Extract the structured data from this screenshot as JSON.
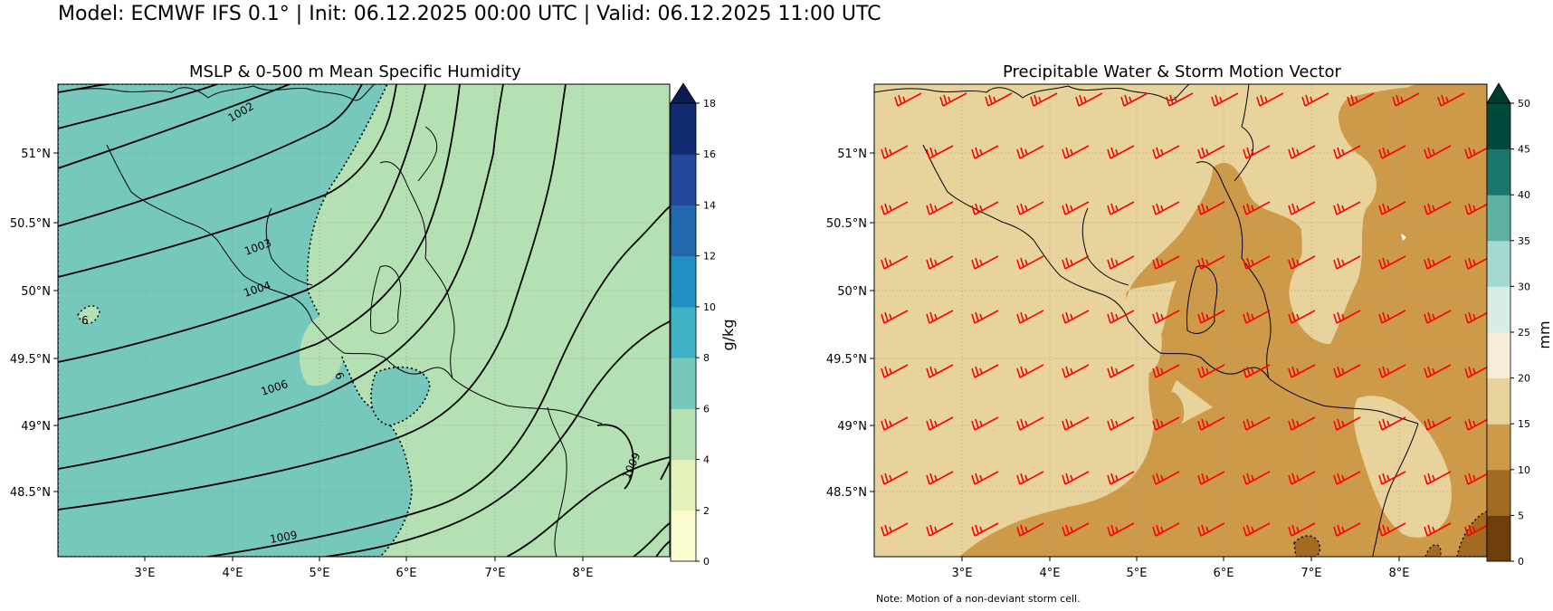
{
  "figure_title": "Model: ECMWF IFS 0.1° | Init: 06.12.2025 00:00 UTC | Valid: 06.12.2025 11:00 UTC",
  "left_panel": {
    "title": "MSLP & 0-500 m Mean Specific Humidity",
    "x_ticks": [
      "3°E",
      "4°E",
      "5°E",
      "6°E",
      "7°E",
      "8°E"
    ],
    "y_ticks": [
      "51°N",
      "50.5°N",
      "50°N",
      "49.5°N",
      "49°N",
      "48.5°N"
    ],
    "isobar_labels": [
      "1002",
      "1003",
      "1004",
      "1006",
      "1009",
      "1009",
      "6",
      "6"
    ],
    "colorbar": {
      "label": "g/kg",
      "ticks": [
        "0",
        "2",
        "4",
        "6",
        "8",
        "10",
        "12",
        "14",
        "16",
        "18"
      ],
      "colors": [
        "#fbfbd0",
        "#e2f2b8",
        "#b5e0b4",
        "#76c8bc",
        "#3eb1c3",
        "#2090c2",
        "#2168ad",
        "#23479b",
        "#122a6f"
      ],
      "extend_color": "#0b1c52"
    }
  },
  "right_panel": {
    "title": "Precipitable Water & Storm Motion Vector",
    "x_ticks": [
      "3°E",
      "4°E",
      "5°E",
      "6°E",
      "7°E",
      "8°E"
    ],
    "y_ticks": [
      "51°N",
      "50.5°N",
      "50°N",
      "49.5°N",
      "49°N",
      "48.5°N"
    ],
    "barb_color": "#ff0000",
    "colorbar": {
      "label": "mm",
      "ticks": [
        "0",
        "5",
        "10",
        "15",
        "20",
        "25",
        "30",
        "35",
        "40",
        "45",
        "50"
      ],
      "colors": [
        "#6e3f0b",
        "#a36a21",
        "#cd9a4a",
        "#e8d39c",
        "#f5ecda",
        "#d8ece8",
        "#a4d9cf",
        "#5cb1a3",
        "#1b776b",
        "#02493d"
      ],
      "extend_color": "#013b30"
    },
    "note": "Note: Motion of a non-deviant storm cell."
  }
}
